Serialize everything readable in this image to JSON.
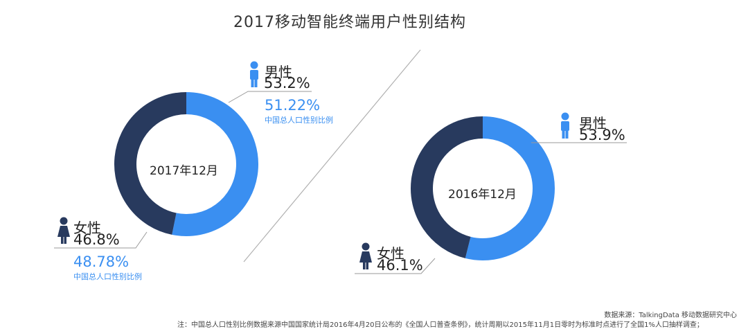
{
  "title": "2017移动智能终端用户性别结构",
  "colors": {
    "male": "#3a8ff1",
    "female": "#283a5e",
    "compare": "#3a8ff1",
    "divider": "#b0b0b0"
  },
  "chart_data": [
    {
      "type": "pie",
      "donut": true,
      "center_label": "2017年12月",
      "slices": [
        {
          "label": "男性",
          "value": 53.2,
          "display": "53.2%",
          "icon": "male-person-icon"
        },
        {
          "label": "女性",
          "value": 46.8,
          "display": "46.8%",
          "icon": "female-person-icon"
        }
      ],
      "comparison": {
        "male": {
          "value": "51.22%",
          "note": "中国总人口性别比例"
        },
        "female": {
          "value": "48.78%",
          "note": "中国总人口性别比例"
        }
      }
    },
    {
      "type": "pie",
      "donut": true,
      "center_label": "2016年12月",
      "slices": [
        {
          "label": "男性",
          "value": 53.9,
          "display": "53.9%",
          "icon": "male-person-icon"
        },
        {
          "label": "女性",
          "value": 46.1,
          "display": "46.1%",
          "icon": "female-person-icon"
        }
      ]
    }
  ],
  "source": "数据来源：TalkingData 移动数据研究中心",
  "footnote": "注：中国总人口性别比例数据来源中国国家统计局2016年4月20日公布的《全国人口普查条例》，统计周期以2015年11月1日零时为标准时点进行了全国1%人口抽样调查；"
}
